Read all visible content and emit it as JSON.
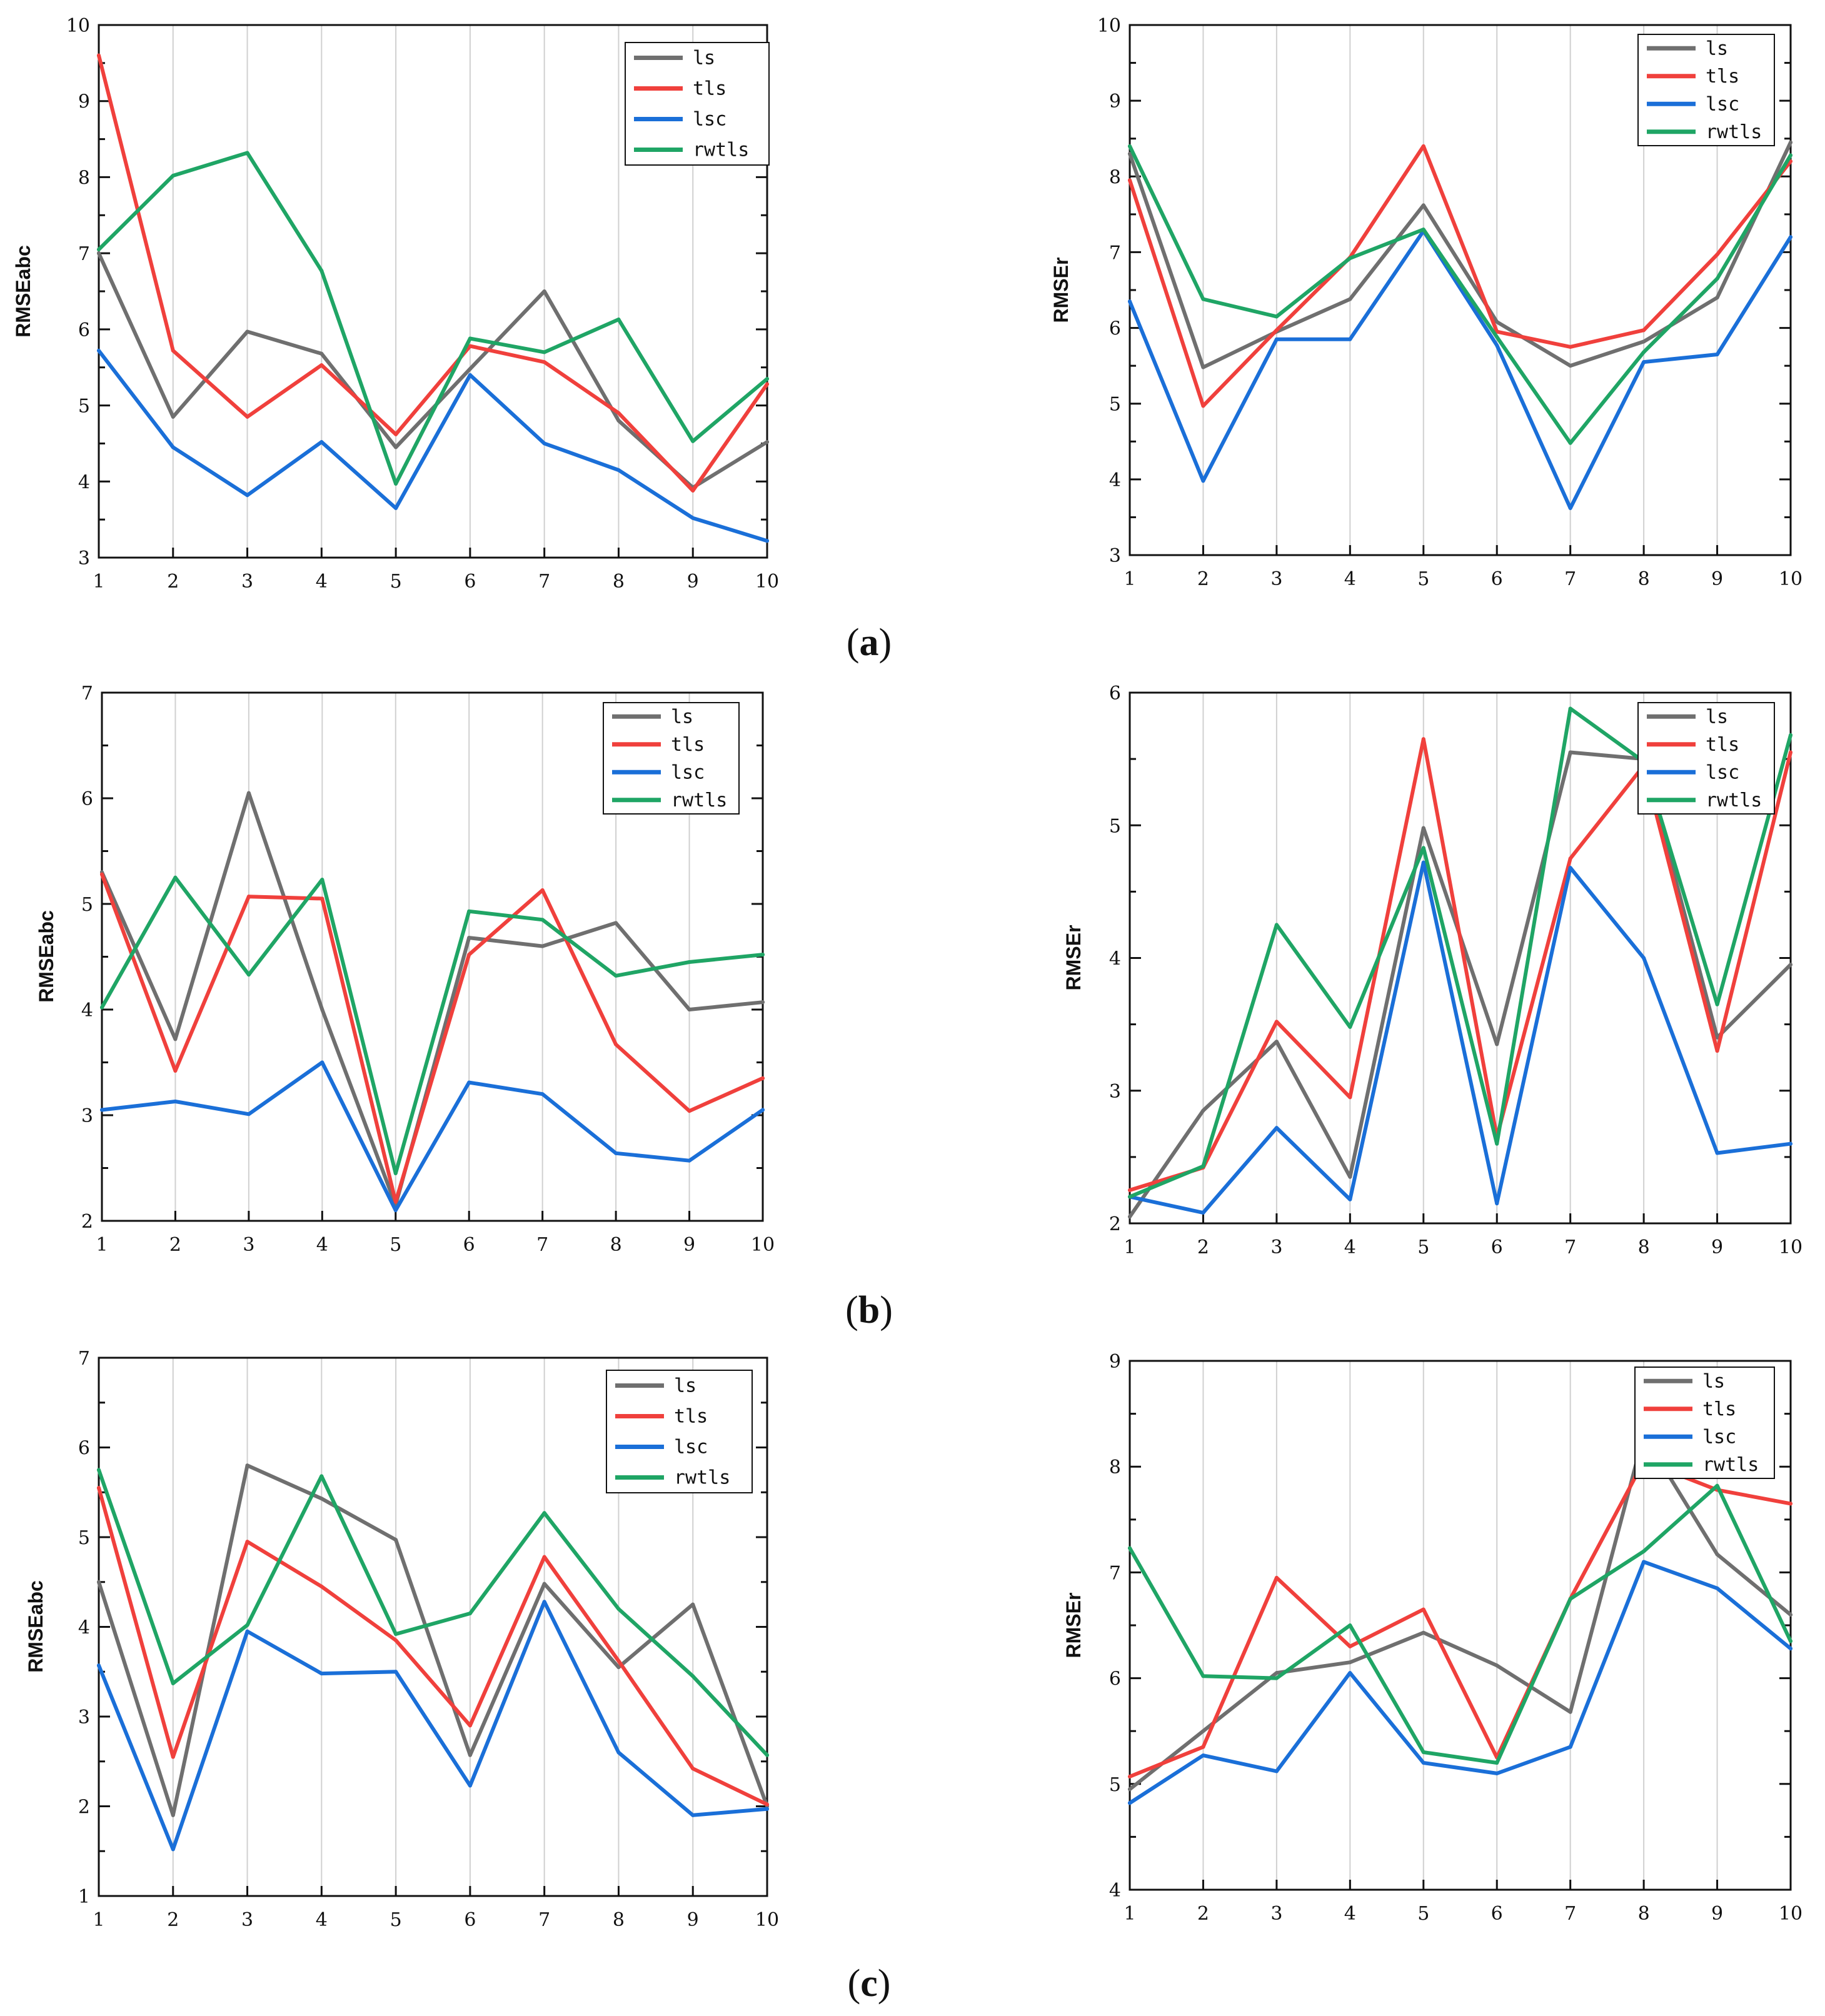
{
  "colors": {
    "ls": "#6f6f6f",
    "tls": "#f0403c",
    "lsc": "#1a6fd8",
    "rwtls": "#1fa565",
    "grid": "#d0d0d0",
    "axis": "#111111"
  },
  "panel_labels": [
    {
      "open": "(",
      "letter": "a",
      "close": ")"
    },
    {
      "open": "(",
      "letter": "b",
      "close": ")"
    },
    {
      "open": "(",
      "letter": "c",
      "close": ")"
    }
  ],
  "chart_data": [
    {
      "type": "line",
      "panel": "a",
      "ylabel": "RMSEabc",
      "categories": [
        "1",
        "2",
        "3",
        "4",
        "5",
        "6",
        "7",
        "8",
        "9",
        "10"
      ],
      "ylim": [
        3,
        10
      ],
      "yticks": [
        3,
        4,
        5,
        6,
        7,
        8,
        9,
        10
      ],
      "grid": "vertical",
      "legend": "top-right",
      "series": [
        {
          "name": "ls",
          "values": [
            7.0,
            4.85,
            5.97,
            5.68,
            4.45,
            5.48,
            6.5,
            4.8,
            3.92,
            4.52
          ]
        },
        {
          "name": "tls",
          "values": [
            9.6,
            5.72,
            4.85,
            5.53,
            4.62,
            5.78,
            5.57,
            4.9,
            3.88,
            5.28
          ]
        },
        {
          "name": "lsc",
          "values": [
            5.72,
            4.45,
            3.82,
            4.52,
            3.65,
            5.4,
            4.5,
            4.15,
            3.52,
            3.22
          ]
        },
        {
          "name": "rwtls",
          "values": [
            7.05,
            8.02,
            8.32,
            6.77,
            3.97,
            5.88,
            5.7,
            6.13,
            4.53,
            5.35
          ]
        }
      ]
    },
    {
      "type": "line",
      "panel": "a",
      "ylabel": "RMSEr",
      "categories": [
        "1",
        "2",
        "3",
        "4",
        "5",
        "6",
        "7",
        "8",
        "9",
        "10"
      ],
      "ylim": [
        3,
        10
      ],
      "yticks": [
        3,
        4,
        5,
        6,
        7,
        8,
        9,
        10
      ],
      "grid": "vertical",
      "legend": "top-right",
      "series": [
        {
          "name": "ls",
          "values": [
            8.3,
            5.48,
            5.95,
            6.38,
            7.62,
            6.08,
            5.5,
            5.82,
            6.4,
            8.45
          ]
        },
        {
          "name": "tls",
          "values": [
            7.95,
            4.97,
            5.97,
            6.93,
            8.4,
            5.95,
            5.75,
            5.97,
            6.97,
            8.2
          ]
        },
        {
          "name": "lsc",
          "values": [
            6.35,
            3.98,
            5.85,
            5.85,
            7.28,
            5.77,
            3.62,
            5.55,
            5.65,
            7.2
          ]
        },
        {
          "name": "rwtls",
          "values": [
            8.4,
            6.38,
            6.15,
            6.92,
            7.3,
            5.88,
            4.48,
            5.68,
            6.65,
            8.28
          ]
        }
      ]
    },
    {
      "type": "line",
      "panel": "b",
      "ylabel": "RMSEabc",
      "categories": [
        "1",
        "2",
        "3",
        "4",
        "5",
        "6",
        "7",
        "8",
        "9",
        "10"
      ],
      "ylim": [
        2,
        7
      ],
      "yticks": [
        2,
        3,
        4,
        5,
        6,
        7
      ],
      "grid": "vertical",
      "legend": "top-right",
      "series": [
        {
          "name": "ls",
          "values": [
            5.3,
            3.72,
            6.05,
            4.0,
            2.15,
            4.68,
            4.6,
            4.82,
            4.0,
            4.07
          ]
        },
        {
          "name": "tls",
          "values": [
            5.28,
            3.42,
            5.07,
            5.05,
            2.18,
            4.52,
            5.13,
            3.67,
            3.04,
            3.35
          ]
        },
        {
          "name": "lsc",
          "values": [
            3.05,
            3.13,
            3.01,
            3.5,
            2.1,
            3.31,
            3.2,
            2.64,
            2.57,
            3.05
          ]
        },
        {
          "name": "rwtls",
          "values": [
            4.02,
            5.25,
            4.33,
            5.23,
            2.45,
            4.93,
            4.85,
            4.32,
            4.45,
            4.52
          ]
        }
      ]
    },
    {
      "type": "line",
      "panel": "b",
      "ylabel": "RMSEr",
      "categories": [
        "1",
        "2",
        "3",
        "4",
        "5",
        "6",
        "7",
        "8",
        "9",
        "10"
      ],
      "ylim": [
        2,
        6
      ],
      "yticks": [
        2,
        3,
        4,
        5,
        6
      ],
      "grid": "vertical",
      "legend": "top-right",
      "series": [
        {
          "name": "ls",
          "values": [
            2.05,
            2.85,
            3.37,
            2.35,
            4.98,
            3.35,
            5.55,
            5.5,
            3.4,
            3.95
          ]
        },
        {
          "name": "tls",
          "values": [
            2.25,
            2.42,
            3.52,
            2.95,
            5.65,
            2.65,
            4.75,
            5.45,
            3.3,
            5.55
          ]
        },
        {
          "name": "lsc",
          "values": [
            2.2,
            2.08,
            2.72,
            2.18,
            4.72,
            2.15,
            4.68,
            4.0,
            2.53,
            2.6
          ]
        },
        {
          "name": "rwtls",
          "values": [
            2.2,
            2.43,
            4.25,
            3.48,
            4.83,
            2.6,
            5.88,
            5.48,
            3.65,
            5.68
          ]
        }
      ]
    },
    {
      "type": "line",
      "panel": "c",
      "ylabel": "RMSEabc",
      "categories": [
        "1",
        "2",
        "3",
        "4",
        "5",
        "6",
        "7",
        "8",
        "9",
        "10"
      ],
      "ylim": [
        1,
        7
      ],
      "yticks": [
        1,
        2,
        3,
        4,
        5,
        6,
        7
      ],
      "grid": "vertical",
      "legend": "top-right",
      "series": [
        {
          "name": "ls",
          "values": [
            4.5,
            1.9,
            5.8,
            5.43,
            4.97,
            2.57,
            4.48,
            3.55,
            4.25,
            2.0
          ]
        },
        {
          "name": "tls",
          "values": [
            5.55,
            2.55,
            4.95,
            4.45,
            3.85,
            2.9,
            4.78,
            3.62,
            2.42,
            2.02
          ]
        },
        {
          "name": "lsc",
          "values": [
            3.57,
            1.52,
            3.95,
            3.48,
            3.5,
            2.23,
            4.28,
            2.6,
            1.9,
            1.97
          ]
        },
        {
          "name": "rwtls",
          "values": [
            5.75,
            3.37,
            4.02,
            5.68,
            3.92,
            4.15,
            5.27,
            4.2,
            3.45,
            2.57
          ]
        }
      ]
    },
    {
      "type": "line",
      "panel": "c",
      "ylabel": "RMSEr",
      "categories": [
        "1",
        "2",
        "3",
        "4",
        "5",
        "6",
        "7",
        "8",
        "9",
        "10"
      ],
      "ylim": [
        4,
        9
      ],
      "yticks": [
        4,
        5,
        6,
        7,
        8,
        9
      ],
      "grid": "vertical",
      "legend": "top-right",
      "series": [
        {
          "name": "ls",
          "values": [
            4.95,
            5.5,
            6.05,
            6.15,
            6.43,
            6.12,
            5.68,
            8.3,
            7.17,
            6.6
          ]
        },
        {
          "name": "tls",
          "values": [
            5.07,
            5.35,
            6.95,
            6.3,
            6.65,
            5.25,
            6.75,
            8.05,
            7.78,
            7.65
          ]
        },
        {
          "name": "lsc",
          "values": [
            4.82,
            5.27,
            5.12,
            6.05,
            5.2,
            5.1,
            5.35,
            7.1,
            6.85,
            6.28
          ]
        },
        {
          "name": "rwtls",
          "values": [
            7.23,
            6.02,
            6.0,
            6.5,
            5.3,
            5.2,
            6.75,
            7.2,
            7.82,
            6.35
          ]
        }
      ]
    }
  ]
}
